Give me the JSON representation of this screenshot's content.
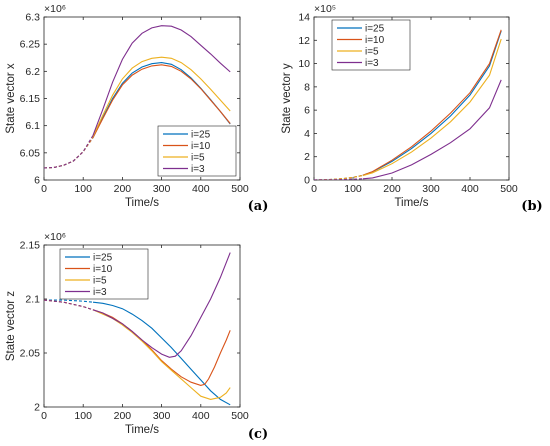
{
  "colors": {
    "i=25": "#0072BD",
    "i=10": "#D95319",
    "i=5": "#EDB120",
    "i=3": "#7E2F8E"
  },
  "chart_data": [
    {
      "type": "line",
      "panel_label": "(a)",
      "xlabel": "Time/s",
      "ylabel": "State vector x",
      "exponent": "×10⁶",
      "xlim": [
        0,
        500
      ],
      "ylim": [
        6.0,
        6.3
      ],
      "xticks": [
        "0",
        "100",
        "200",
        "300",
        "400",
        "500"
      ],
      "yticks": [
        "6",
        "6.05",
        "6.1",
        "6.15",
        "6.2",
        "6.25",
        "6.3"
      ],
      "grid": false,
      "legend_position": "lower-right",
      "dashed_until_x": 125,
      "series": [
        {
          "name": "i=25",
          "x": [
            0,
            25,
            50,
            75,
            100,
            125,
            150,
            175,
            200,
            225,
            250,
            275,
            300,
            325,
            350,
            375,
            400,
            425,
            450,
            475
          ],
          "y": [
            6.022,
            6.023,
            6.027,
            6.035,
            6.052,
            6.078,
            6.115,
            6.15,
            6.178,
            6.197,
            6.208,
            6.214,
            6.216,
            6.213,
            6.203,
            6.188,
            6.169,
            6.148,
            6.126,
            6.103
          ]
        },
        {
          "name": "i=10",
          "x": [
            0,
            25,
            50,
            75,
            100,
            125,
            150,
            175,
            200,
            225,
            250,
            275,
            300,
            325,
            350,
            375,
            400,
            425,
            450,
            475
          ],
          "y": [
            6.022,
            6.023,
            6.027,
            6.035,
            6.052,
            6.078,
            6.113,
            6.147,
            6.175,
            6.193,
            6.204,
            6.21,
            6.212,
            6.209,
            6.2,
            6.186,
            6.168,
            6.147,
            6.126,
            6.104
          ]
        },
        {
          "name": "i=5",
          "x": [
            0,
            25,
            50,
            75,
            100,
            125,
            150,
            175,
            200,
            225,
            250,
            275,
            300,
            325,
            350,
            375,
            400,
            425,
            450,
            475
          ],
          "y": [
            6.022,
            6.023,
            6.027,
            6.035,
            6.052,
            6.08,
            6.119,
            6.156,
            6.186,
            6.206,
            6.218,
            6.224,
            6.226,
            6.224,
            6.216,
            6.203,
            6.186,
            6.167,
            6.147,
            6.127
          ]
        },
        {
          "name": "i=3",
          "x": [
            0,
            25,
            50,
            75,
            100,
            125,
            150,
            175,
            200,
            225,
            250,
            275,
            300,
            325,
            350,
            375,
            400,
            425,
            450,
            475
          ],
          "y": [
            6.022,
            6.023,
            6.027,
            6.035,
            6.052,
            6.082,
            6.13,
            6.18,
            6.222,
            6.252,
            6.27,
            6.28,
            6.284,
            6.283,
            6.276,
            6.264,
            6.248,
            6.232,
            6.215,
            6.199
          ]
        }
      ]
    },
    {
      "type": "line",
      "panel_label": "(b)",
      "xlabel": "Time/s",
      "ylabel": "State vector y",
      "exponent": "×10⁵",
      "xlim": [
        0,
        500
      ],
      "ylim": [
        0,
        14
      ],
      "xticks": [
        "0",
        "100",
        "200",
        "300",
        "400",
        "500"
      ],
      "yticks": [
        "0",
        "2",
        "4",
        "6",
        "8",
        "10",
        "12",
        "14"
      ],
      "grid": false,
      "legend_position": "top-left",
      "dashed_until_x": 125,
      "series": [
        {
          "name": "i=25",
          "x": [
            0,
            25,
            50,
            75,
            100,
            125,
            150,
            200,
            250,
            300,
            350,
            400,
            450,
            480
          ],
          "y": [
            0,
            0.02,
            0.05,
            0.12,
            0.22,
            0.4,
            0.7,
            1.6,
            2.7,
            4.0,
            5.5,
            7.3,
            9.8,
            12.8
          ]
        },
        {
          "name": "i=10",
          "x": [
            0,
            25,
            50,
            75,
            100,
            125,
            150,
            200,
            250,
            300,
            350,
            400,
            450,
            480
          ],
          "y": [
            0,
            0.02,
            0.05,
            0.12,
            0.22,
            0.4,
            0.72,
            1.7,
            2.85,
            4.2,
            5.75,
            7.5,
            10.0,
            12.9
          ]
        },
        {
          "name": "i=5",
          "x": [
            0,
            25,
            50,
            75,
            100,
            125,
            150,
            200,
            250,
            300,
            350,
            400,
            450,
            480
          ],
          "y": [
            0,
            0.02,
            0.05,
            0.12,
            0.22,
            0.38,
            0.62,
            1.4,
            2.4,
            3.6,
            5.0,
            6.7,
            9.0,
            12.1
          ]
        },
        {
          "name": "i=3",
          "x": [
            0,
            25,
            50,
            75,
            100,
            125,
            150,
            200,
            250,
            300,
            350,
            400,
            450,
            480
          ],
          "y": [
            0,
            0.01,
            0.02,
            0.04,
            0.07,
            0.1,
            0.18,
            0.6,
            1.3,
            2.2,
            3.2,
            4.4,
            6.2,
            8.6
          ]
        }
      ]
    },
    {
      "type": "line",
      "panel_label": "(c)",
      "xlabel": "Time/s",
      "ylabel": "State vector z",
      "exponent": "×10⁶",
      "xlim": [
        0,
        500
      ],
      "ylim": [
        2.0,
        2.15
      ],
      "xticks": [
        "0",
        "100",
        "200",
        "300",
        "400",
        "500"
      ],
      "yticks": [
        "2",
        "2.05",
        "2.1",
        "2.15"
      ],
      "grid": false,
      "legend_position": "top-left",
      "dashed_until_x": 125,
      "series": [
        {
          "name": "i=25",
          "x": [
            0,
            50,
            100,
            125,
            150,
            175,
            200,
            225,
            250,
            275,
            300,
            325,
            350,
            375,
            400,
            425,
            450,
            475
          ],
          "y": [
            2.099,
            2.099,
            2.098,
            2.097,
            2.096,
            2.094,
            2.091,
            2.086,
            2.08,
            2.073,
            2.064,
            2.055,
            2.045,
            2.035,
            2.025,
            2.015,
            2.007,
            2.002
          ]
        },
        {
          "name": "i=10",
          "x": [
            0,
            50,
            100,
            125,
            150,
            175,
            200,
            225,
            250,
            275,
            300,
            325,
            350,
            375,
            400,
            410,
            420,
            435,
            450,
            465,
            475
          ],
          "y": [
            2.099,
            2.097,
            2.093,
            2.09,
            2.087,
            2.083,
            2.077,
            2.07,
            2.062,
            2.053,
            2.043,
            2.035,
            2.028,
            2.023,
            2.02,
            2.021,
            2.026,
            2.037,
            2.05,
            2.062,
            2.071
          ]
        },
        {
          "name": "i=5",
          "x": [
            0,
            50,
            100,
            125,
            150,
            175,
            200,
            225,
            250,
            275,
            300,
            325,
            350,
            375,
            400,
            425,
            450,
            465,
            475
          ],
          "y": [
            2.099,
            2.097,
            2.093,
            2.09,
            2.086,
            2.082,
            2.076,
            2.069,
            2.061,
            2.052,
            2.042,
            2.034,
            2.026,
            2.018,
            2.01,
            2.007,
            2.009,
            2.013,
            2.018
          ]
        },
        {
          "name": "i=3",
          "x": [
            0,
            50,
            100,
            125,
            150,
            175,
            200,
            225,
            250,
            275,
            300,
            320,
            335,
            350,
            375,
            400,
            425,
            450,
            475
          ],
          "y": [
            2.099,
            2.097,
            2.093,
            2.09,
            2.087,
            2.082,
            2.077,
            2.07,
            2.062,
            2.055,
            2.049,
            2.046,
            2.047,
            2.052,
            2.066,
            2.083,
            2.1,
            2.12,
            2.143
          ]
        }
      ]
    }
  ]
}
